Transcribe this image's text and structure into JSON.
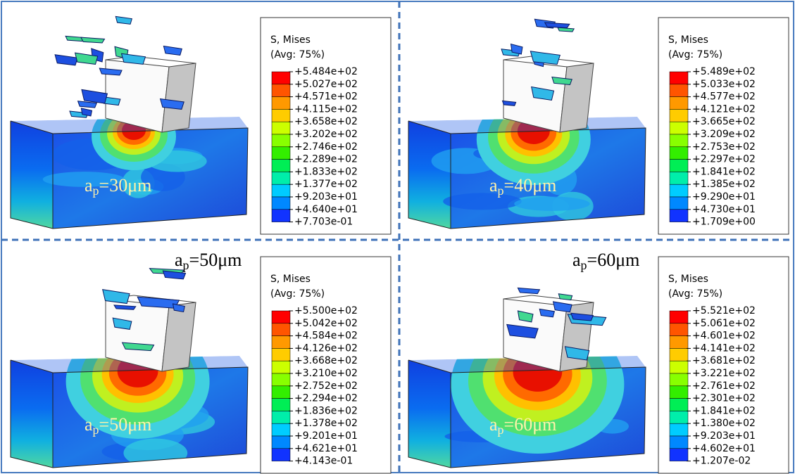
{
  "panels": [
    {
      "legend": {
        "title": "S, Mises",
        "subtitle": "(Avg: 75%)",
        "values": [
          "+5.484e+02",
          "+5.027e+02",
          "+4.571e+02",
          "+4.115e+02",
          "+3.658e+02",
          "+3.202e+02",
          "+2.746e+02",
          "+2.289e+02",
          "+1.833e+02",
          "+1.377e+02",
          "+9.203e+01",
          "+4.640e+01",
          "+7.703e-01"
        ]
      },
      "labels": [
        {
          "base": "a",
          "sub": "p",
          "rest": "=30μm"
        }
      ]
    },
    {
      "legend": {
        "title": "S, Mises",
        "subtitle": "(Avg: 75%)",
        "values": [
          "+5.489e+02",
          "+5.033e+02",
          "+4.577e+02",
          "+4.121e+02",
          "+3.665e+02",
          "+3.209e+02",
          "+2.753e+02",
          "+2.297e+02",
          "+1.841e+02",
          "+1.385e+02",
          "+9.290e+01",
          "+4.730e+01",
          "+1.709e+00"
        ]
      },
      "labels": [
        {
          "base": "a",
          "sub": "p",
          "rest": "=40μm"
        }
      ]
    },
    {
      "legend": {
        "title": "S, Mises",
        "subtitle": "(Avg: 75%)",
        "values": [
          "+5.500e+02",
          "+5.042e+02",
          "+4.584e+02",
          "+4.126e+02",
          "+3.668e+02",
          "+3.210e+02",
          "+2.752e+02",
          "+2.294e+02",
          "+1.836e+02",
          "+1.378e+02",
          "+9.201e+01",
          "+4.621e+01",
          "+4.143e-01"
        ]
      },
      "labels": [
        {
          "base": "a",
          "sub": "p",
          "rest": "=50μm"
        },
        {
          "base": "a",
          "sub": "p",
          "rest": "=50μm"
        }
      ]
    },
    {
      "legend": {
        "title": "S, Mises",
        "subtitle": "(Avg: 75%)",
        "values": [
          "+5.521e+02",
          "+5.061e+02",
          "+4.601e+02",
          "+4.141e+02",
          "+3.681e+02",
          "+3.221e+02",
          "+2.761e+02",
          "+2.301e+02",
          "+1.841e+02",
          "+1.380e+02",
          "+9.203e+01",
          "+4.602e+01",
          "+1.207e-02"
        ]
      },
      "labels": [
        {
          "base": "a",
          "sub": "p",
          "rest": "=60μm"
        },
        {
          "base": "a",
          "sub": "p",
          "rest": "=60μm"
        }
      ]
    }
  ]
}
